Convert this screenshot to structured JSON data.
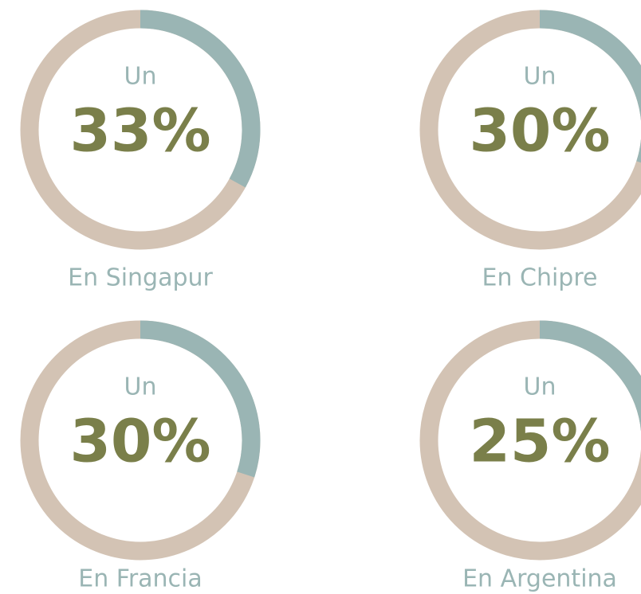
{
  "chart_data": [
    {
      "type": "donut",
      "subtitle": "Un",
      "values": [
        33
      ],
      "value_labels": [
        "33%"
      ],
      "caption": "En Singapur",
      "color": "#9ab5b4",
      "track_color": "#d3c3b4"
    },
    {
      "type": "donut",
      "subtitle": "Un",
      "values": [
        30
      ],
      "value_labels": [
        "30%"
      ],
      "caption": "En Chipre",
      "color": "#9ab5b4",
      "track_color": "#d3c3b4"
    },
    {
      "type": "donut",
      "subtitle": "Un",
      "values": [
        30
      ],
      "value_labels": [
        "30%"
      ],
      "caption": "En Francia",
      "color": "#9ab5b4",
      "track_color": "#d3c3b4"
    },
    {
      "type": "donut",
      "subtitle": "Un",
      "values": [
        25
      ],
      "value_labels": [
        "25%"
      ],
      "caption": "En Argentina",
      "color": "#9ab5b4",
      "track_color": "#d3c3b4"
    }
  ]
}
